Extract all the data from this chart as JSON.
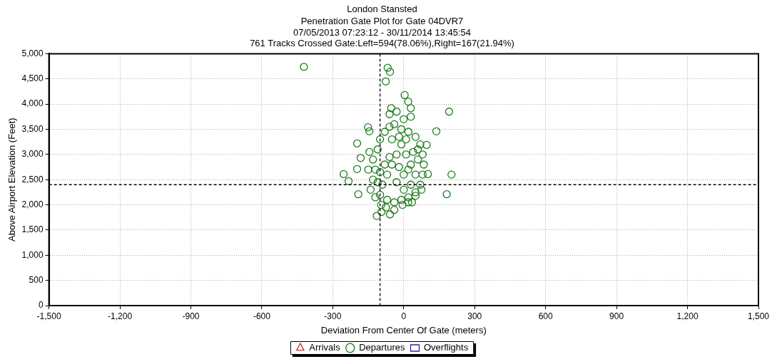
{
  "chart_data": {
    "type": "scatter",
    "title": "London Stansted",
    "subtitle": "Penetration Gate Plot for Gate 04DVR7",
    "annotations": [
      "07/05/2013 07:23:12 - 30/11/2014 13:45:54",
      "761 Tracks Crossed Gate:Left=594(78.06%),Right=167(21.94%)"
    ],
    "xlabel": "Deviation From Center Of Gate (meters)",
    "ylabel": "Above Airport Elevation (Feet)",
    "xlim": [
      -1500,
      1500
    ],
    "xticks": [
      {
        "value": -1500,
        "label": "-1,500"
      },
      {
        "value": -1200,
        "label": "-1,200"
      },
      -900,
      -600,
      -300,
      0,
      300,
      600,
      900,
      {
        "value": 1200,
        "label": "1,200"
      },
      {
        "value": 1500,
        "label": "1,500"
      }
    ],
    "ylim": [
      0,
      5000
    ],
    "yticks": [
      0,
      500,
      {
        "value": 1000,
        "label": "1,000"
      },
      {
        "value": 1500,
        "label": "1,500"
      },
      {
        "value": 2000,
        "label": "2,000"
      },
      {
        "value": 2500,
        "label": "2,500"
      },
      {
        "value": 3000,
        "label": "3,000"
      },
      {
        "value": 3500,
        "label": "3,500"
      },
      {
        "value": 4000,
        "label": "4,000"
      },
      {
        "value": 4500,
        "label": "4,500"
      },
      {
        "value": 5000,
        "label": "5,000"
      }
    ],
    "grid": true,
    "legend": "bottom",
    "ref_lines": [
      {
        "axis": "x",
        "value": -100,
        "color": "#000000",
        "line_style": "dashed"
      },
      {
        "axis": "y",
        "value": 2400,
        "color": "#000000",
        "line_style": "dashed"
      }
    ],
    "series": [
      {
        "name": "Arrivals",
        "color": "#c0392b",
        "marker": "triangle"
      },
      {
        "name": "Departures",
        "color": "#1e7b1e",
        "marker": "circle",
        "x": [
          -422,
          -68,
          -58,
          -76,
          4,
          192,
          138,
          -197,
          202,
          182,
          -254,
          -233,
          -192,
          -114,
          -58,
          50,
          -145,
          -151,
          -182,
          -197,
          19,
          -53,
          30,
          97,
          102,
          19,
          -94,
          -140,
          -130,
          -120,
          -130,
          -110,
          -100,
          -80,
          -60,
          -40,
          -10,
          20,
          50,
          70,
          80,
          85,
          80,
          70,
          50,
          20,
          -10,
          -40,
          -70,
          -100,
          -90,
          -70,
          -50,
          -30,
          -10,
          10,
          30,
          50,
          30,
          0,
          -30,
          -60,
          -80,
          -100,
          -110,
          0,
          20,
          40,
          -20,
          60,
          -50,
          -20,
          10,
          -120,
          -95,
          -75,
          -40,
          -5,
          35,
          -60,
          -30,
          0,
          30,
          -150,
          -145,
          60,
          75
        ],
        "values": [
          4740,
          4720,
          4640,
          4450,
          4180,
          3850,
          3460,
          3220,
          2600,
          2210,
          2610,
          2470,
          2210,
          1780,
          1810,
          2180,
          3460,
          3540,
          2930,
          2710,
          4050,
          3920,
          3920,
          3190,
          2610,
          2050,
          1860,
          2300,
          2500,
          2700,
          2900,
          3100,
          3300,
          3450,
          3550,
          3600,
          3500,
          3450,
          3350,
          3200,
          3000,
          2800,
          2600,
          2400,
          2250,
          2150,
          2100,
          2050,
          2100,
          2200,
          2400,
          2600,
          2800,
          3000,
          3200,
          3000,
          2800,
          2600,
          2400,
          2300,
          2450,
          2950,
          2800,
          2650,
          2450,
          2600,
          2700,
          3050,
          2750,
          2900,
          3300,
          3350,
          3300,
          2150,
          2000,
          1950,
          1900,
          2000,
          2050,
          3800,
          3850,
          3700,
          3750,
          2700,
          3050,
          3100,
          2300
        ]
      },
      {
        "name": "Overflights",
        "color": "#2a2aa8",
        "marker": "square"
      }
    ]
  }
}
